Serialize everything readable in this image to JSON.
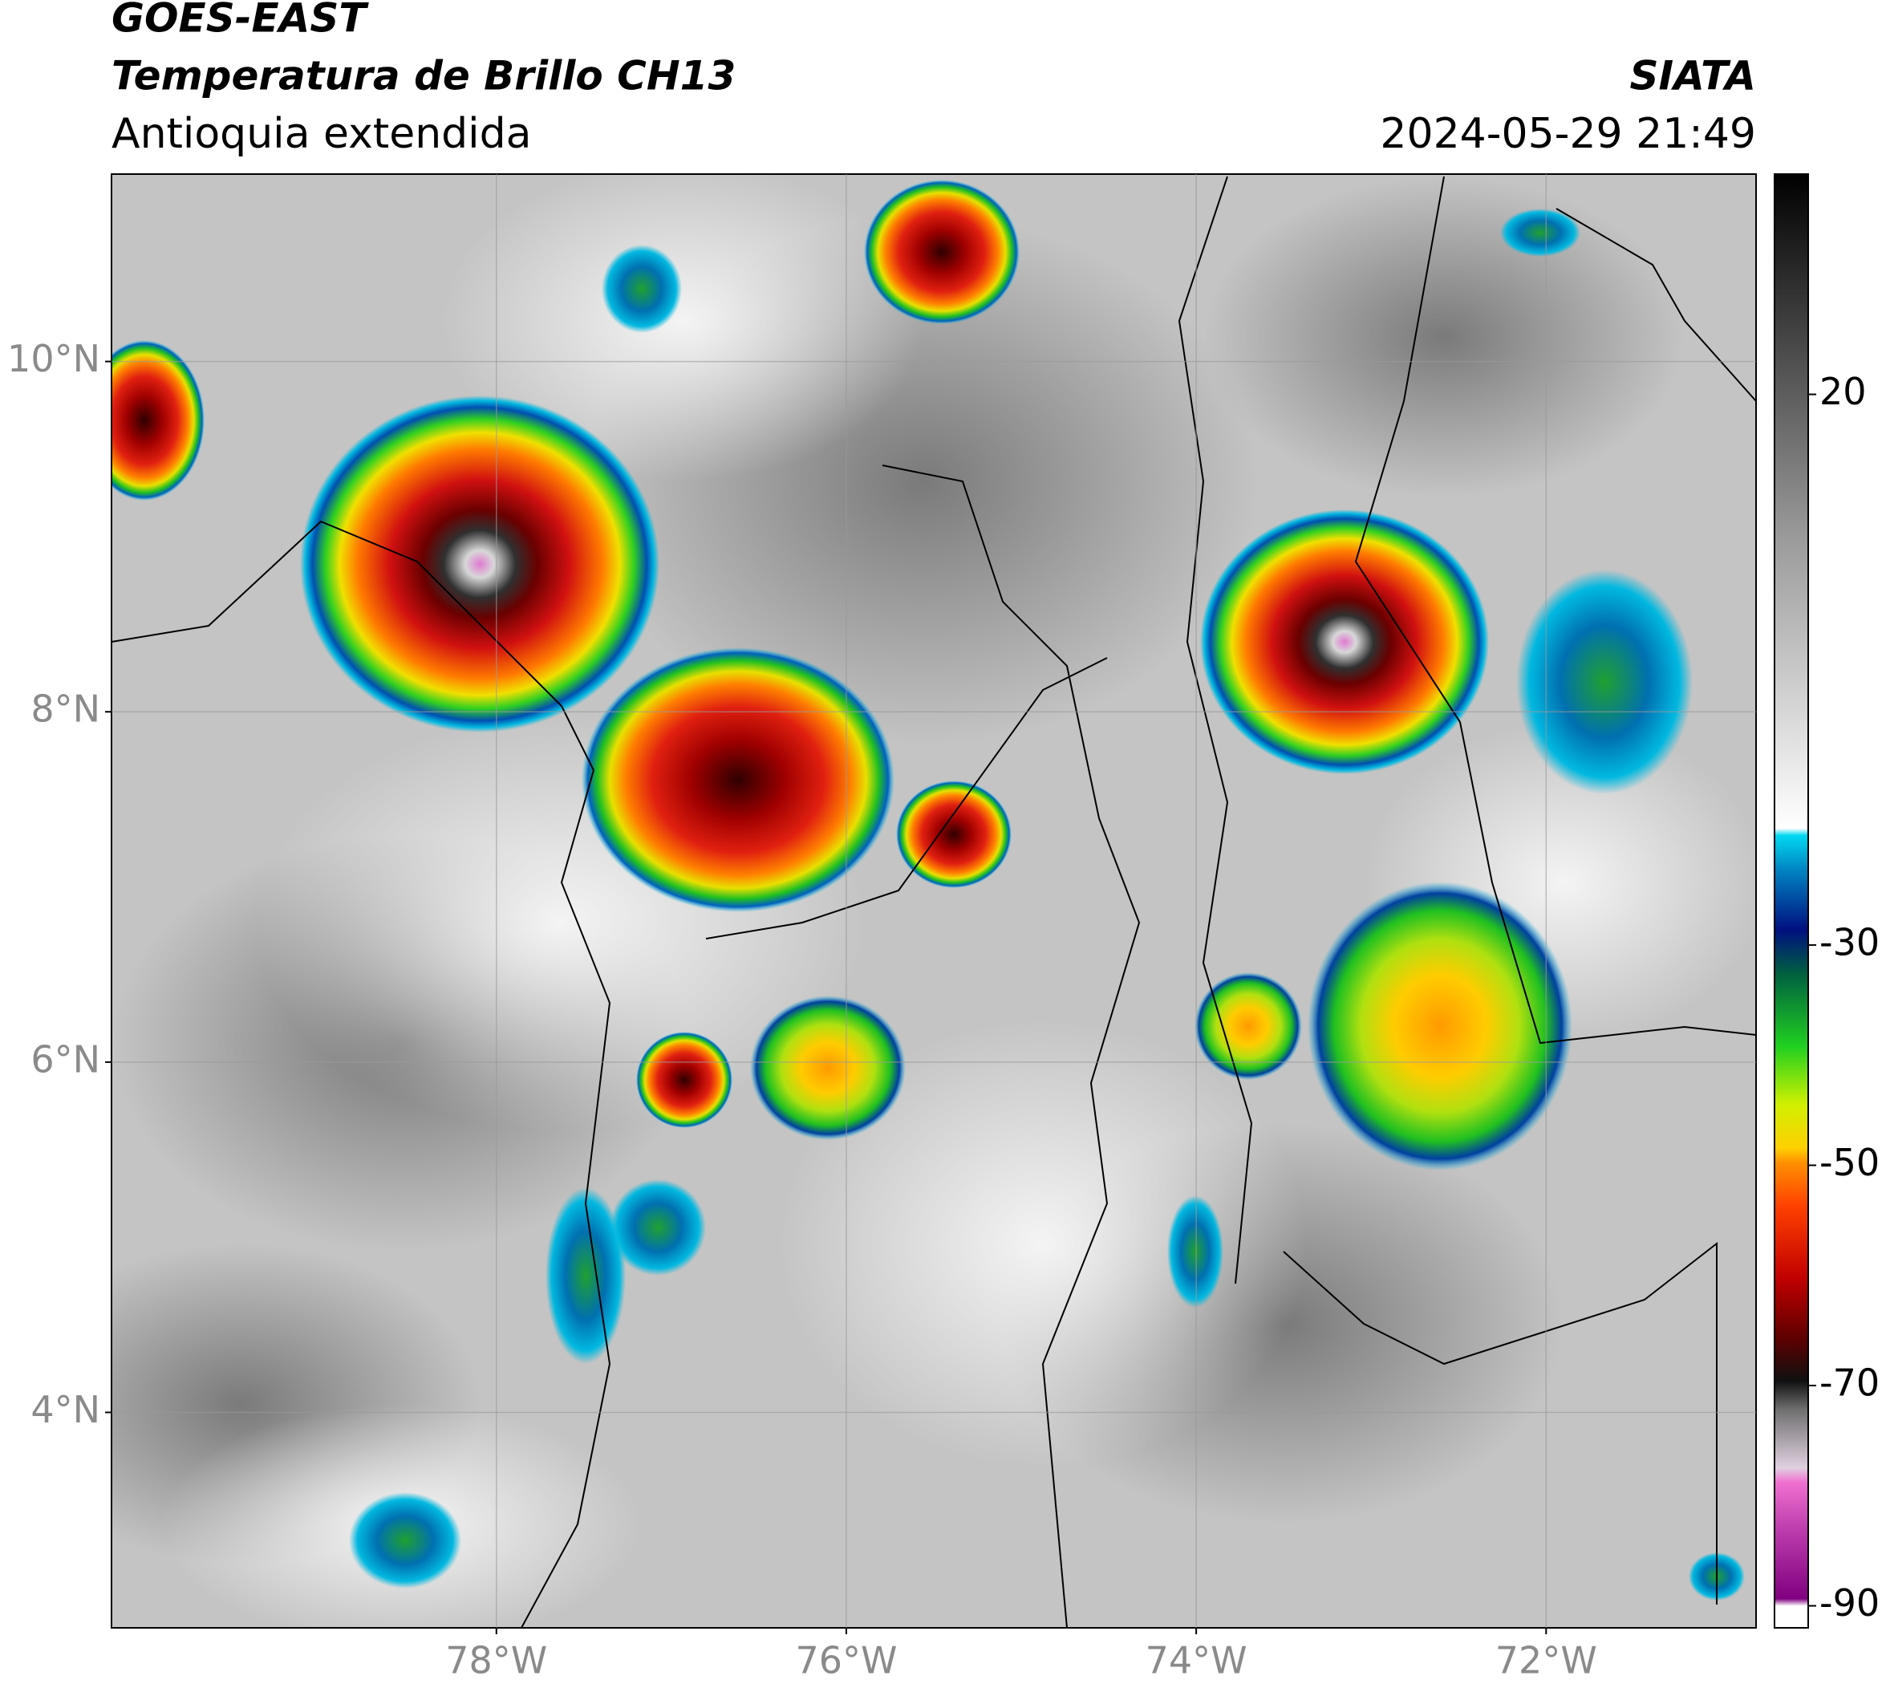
{
  "chart_data": {
    "type": "map",
    "title": "GOES-EAST",
    "subtitle": "Temperatura de Brillo CH13",
    "region": "Antioquia extendida",
    "source": "SIATA",
    "datetime": "2024-05-29 21:49",
    "xlim": [
      -80.2,
      -70.8
    ],
    "ylim": [
      2.77,
      11.07
    ],
    "xticks": [
      {
        "value": -78,
        "label": "78°W"
      },
      {
        "value": -76,
        "label": "76°W"
      },
      {
        "value": -74,
        "label": "74°W"
      },
      {
        "value": -72,
        "label": "72°W"
      }
    ],
    "yticks": [
      {
        "value": 4,
        "label": "4°N"
      },
      {
        "value": 6,
        "label": "6°N"
      },
      {
        "value": 8,
        "label": "8°N"
      },
      {
        "value": 10,
        "label": "10°N"
      }
    ],
    "grid": true,
    "colorbar": {
      "lim": [
        -92,
        40
      ],
      "ticks": [
        20,
        -30,
        -50,
        -70,
        -90
      ]
    }
  }
}
